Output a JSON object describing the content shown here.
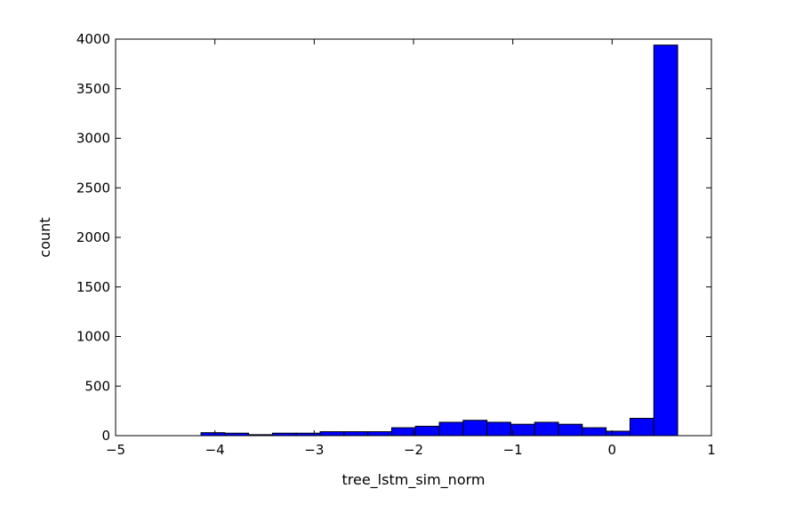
{
  "chart_data": {
    "type": "bar",
    "subtype": "histogram",
    "title": "",
    "xlabel": "tree_lstm_sim_norm",
    "ylabel": "count",
    "xlim": [
      -5,
      1
    ],
    "ylim": [
      0,
      4000
    ],
    "x_ticks": [
      -5,
      -4,
      -3,
      -2,
      -1,
      0,
      1
    ],
    "x_tick_labels": [
      "−5",
      "−4",
      "−3",
      "−2",
      "−1",
      "0",
      "1"
    ],
    "y_ticks": [
      0,
      500,
      1000,
      1500,
      2000,
      2500,
      3000,
      3500,
      4000
    ],
    "y_tick_labels": [
      "0",
      "500",
      "1000",
      "1500",
      "2000",
      "2500",
      "3000",
      "3500",
      "4000"
    ],
    "bar_color": "#0000ff",
    "edge_color": "#000000",
    "grid": false,
    "legend": "none",
    "bins": [
      {
        "x0": -4.14,
        "x1": -3.9,
        "count": 30
      },
      {
        "x0": -3.9,
        "x1": -3.66,
        "count": 25
      },
      {
        "x0": -3.66,
        "x1": -3.42,
        "count": 10
      },
      {
        "x0": -3.42,
        "x1": -3.18,
        "count": 25
      },
      {
        "x0": -3.18,
        "x1": -2.94,
        "count": 25
      },
      {
        "x0": -2.94,
        "x1": -2.7,
        "count": 40
      },
      {
        "x0": -2.7,
        "x1": -2.46,
        "count": 40
      },
      {
        "x0": -2.46,
        "x1": -2.22,
        "count": 40
      },
      {
        "x0": -2.22,
        "x1": -1.98,
        "count": 80
      },
      {
        "x0": -1.98,
        "x1": -1.74,
        "count": 95
      },
      {
        "x0": -1.74,
        "x1": -1.5,
        "count": 135
      },
      {
        "x0": -1.5,
        "x1": -1.26,
        "count": 155
      },
      {
        "x0": -1.26,
        "x1": -1.02,
        "count": 135
      },
      {
        "x0": -1.02,
        "x1": -0.78,
        "count": 115
      },
      {
        "x0": -0.78,
        "x1": -0.54,
        "count": 135
      },
      {
        "x0": -0.54,
        "x1": -0.3,
        "count": 115
      },
      {
        "x0": -0.3,
        "x1": -0.06,
        "count": 80
      },
      {
        "x0": -0.06,
        "x1": 0.18,
        "count": 45
      },
      {
        "x0": 0.18,
        "x1": 0.42,
        "count": 175
      },
      {
        "x0": 0.42,
        "x1": 0.66,
        "count": 3940
      }
    ]
  }
}
